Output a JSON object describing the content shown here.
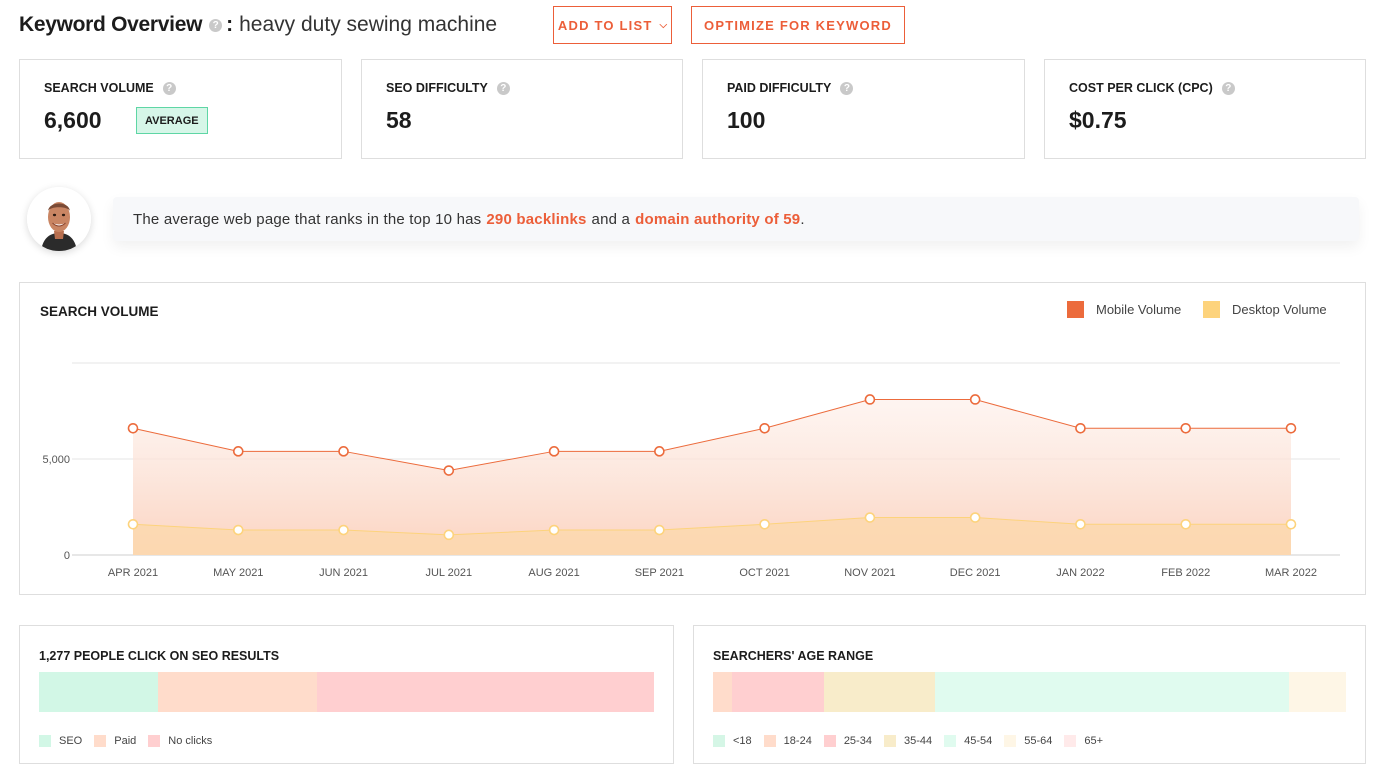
{
  "header": {
    "title": "Keyword Overview",
    "help": "?",
    "colon": ":",
    "keyword": "heavy duty sewing machine",
    "add_to_list": "ADD TO LIST",
    "add_chevron": "⌵",
    "optimize": "OPTIMIZE FOR KEYWORD"
  },
  "metrics": [
    {
      "label": "SEARCH VOLUME",
      "value": "6,600",
      "badge": "AVERAGE"
    },
    {
      "label": "SEO DIFFICULTY",
      "value": "58"
    },
    {
      "label": "PAID DIFFICULTY",
      "value": "100"
    },
    {
      "label": "COST PER CLICK (CPC)",
      "value": "$0.75"
    }
  ],
  "tip": {
    "pre": "The average web page that ranks in the top 10 has",
    "backlinks": "290 backlinks",
    "mid": "and a",
    "authority": "domain authority of 59",
    "post": "."
  },
  "chart_data": {
    "type": "area",
    "title": "SEARCH VOLUME",
    "categories": [
      "APR 2021",
      "MAY 2021",
      "JUN 2021",
      "JUL 2021",
      "AUG 2021",
      "SEP 2021",
      "OCT 2021",
      "NOV 2021",
      "DEC 2021",
      "JAN 2022",
      "FEB 2022",
      "MAR 2022"
    ],
    "series": [
      {
        "name": "Mobile Volume",
        "color": "#ec6b3c",
        "values": [
          6600,
          5400,
          5400,
          4400,
          5400,
          5400,
          6600,
          8100,
          8100,
          6600,
          6600,
          6600
        ]
      },
      {
        "name": "Desktop Volume",
        "color": "#fdd37c",
        "values": [
          1600,
          1300,
          1300,
          1050,
          1300,
          1300,
          1600,
          1950,
          1950,
          1600,
          1600,
          1600
        ]
      }
    ],
    "y_ticks": [
      0,
      5000
    ],
    "y_tick_labels": [
      "0",
      "5,000"
    ],
    "ylim": [
      0,
      10000
    ],
    "grid": true,
    "legend_position": "top-right"
  },
  "seo_clicks": {
    "title": "1,277 PEOPLE CLICK ON SEO RESULTS",
    "segments": [
      {
        "label": "SEO",
        "color": "#d2f7e6",
        "share": 0.193
      },
      {
        "label": "Paid",
        "color": "#ffdccb",
        "share": 0.259
      },
      {
        "label": "No clicks",
        "color": "#ffcfd0",
        "share": 0.548
      }
    ]
  },
  "age_range": {
    "title": "SEARCHERS' AGE RANGE",
    "segments": [
      {
        "label": "<18",
        "color": "#d5f6e6",
        "share": 0.0
      },
      {
        "label": "18-24",
        "color": "#ffdccb",
        "share": 0.03
      },
      {
        "label": "25-34",
        "color": "#ffcfd0",
        "share": 0.145
      },
      {
        "label": "35-44",
        "color": "#f8ecca",
        "share": 0.175
      },
      {
        "label": "45-54",
        "color": "#e0fbef",
        "share": 0.56
      },
      {
        "label": "55-64",
        "color": "#fef6e6",
        "share": 0.09
      },
      {
        "label": "65+",
        "color": "#ffeaea",
        "share": 0.0
      }
    ]
  }
}
